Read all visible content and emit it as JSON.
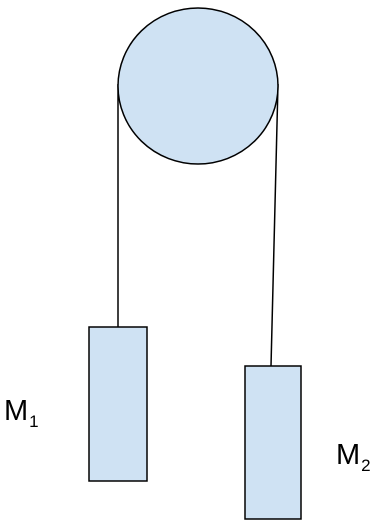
{
  "colors": {
    "fill": "#cfe2f3",
    "stroke": "#000000",
    "background": "#ffffff"
  },
  "labels": {
    "m1": {
      "main": "M",
      "sub": "1"
    },
    "m2": {
      "main": "M",
      "sub": "2"
    }
  }
}
